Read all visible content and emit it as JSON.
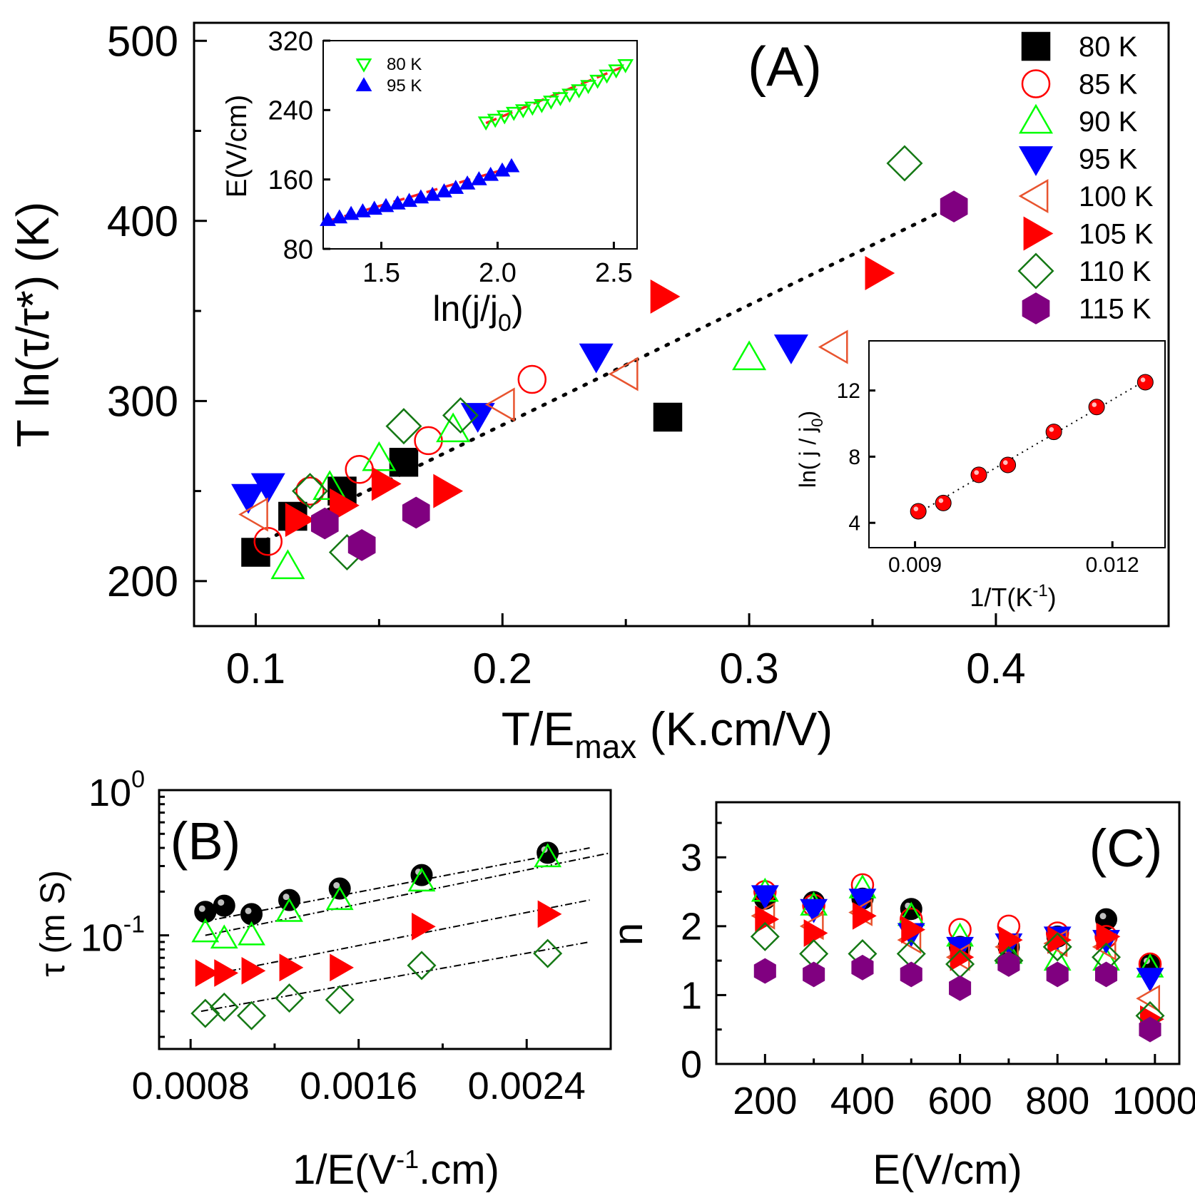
{
  "colors": {
    "black": "#000000",
    "red": "#ff0000",
    "green": "#00ff00",
    "blue": "#0000ff",
    "orange": "#e8542f",
    "darkgreen": "#147814",
    "purple": "#800080",
    "dashred": "#ff2020"
  },
  "chart_data": [
    {
      "id": "A",
      "type": "scatter",
      "panel_label": "(A)",
      "xlabel": "T/E",
      "xlabel_sub": "max",
      "xlabel_suffix": " (K.cm/V)",
      "ylabel": "T ln(τ/τ*) (K)",
      "xlim": [
        0.075,
        0.47
      ],
      "ylim": [
        175,
        510
      ],
      "xticks": [
        0.1,
        0.2,
        0.3,
        0.4
      ],
      "xtick_labels": [
        "0.1",
        "0.2",
        "0.3",
        "0.4"
      ],
      "yticks": [
        200,
        300,
        400,
        500
      ],
      "ytick_labels": [
        "200",
        "300",
        "400",
        "500"
      ],
      "series": [
        {
          "name": "80 K",
          "marker": "square",
          "color": "black",
          "fill": true,
          "x": [
            0.1,
            0.115,
            0.135,
            0.16,
            0.267
          ],
          "y": [
            216,
            236,
            250,
            266,
            291
          ]
        },
        {
          "name": "85 K",
          "marker": "circle",
          "color": "red",
          "fill": false,
          "x": [
            0.105,
            0.122,
            0.142,
            0.17,
            0.212
          ],
          "y": [
            222,
            250,
            262,
            278,
            312
          ]
        },
        {
          "name": "90 K",
          "marker": "triangle-up",
          "color": "green",
          "fill": false,
          "x": [
            0.113,
            0.13,
            0.15,
            0.18,
            0.3
          ],
          "y": [
            208,
            252,
            268,
            284,
            324
          ]
        },
        {
          "name": "95 K",
          "marker": "triangle-down",
          "color": "blue",
          "fill": true,
          "x": [
            0.097,
            0.105,
            0.19,
            0.238,
            0.317
          ],
          "y": [
            247,
            253,
            292,
            325,
            330
          ]
        },
        {
          "name": "100 K",
          "marker": "triangle-left",
          "color": "orange",
          "fill": false,
          "x": [
            0.1,
            0.2,
            0.25,
            0.335
          ],
          "y": [
            237,
            298,
            315,
            330
          ]
        },
        {
          "name": "105 K",
          "marker": "triangle-right",
          "color": "red",
          "fill": true,
          "x": [
            0.117,
            0.135,
            0.152,
            0.177,
            0.265,
            0.352
          ],
          "y": [
            234,
            242,
            254,
            250,
            358,
            371
          ]
        },
        {
          "name": "110 K",
          "marker": "diamond",
          "color": "darkgreen",
          "fill": false,
          "x": [
            0.122,
            0.137,
            0.16,
            0.183,
            0.363
          ],
          "y": [
            250,
            216,
            286,
            292,
            432
          ]
        },
        {
          "name": "115 K",
          "marker": "hexagon",
          "color": "purple",
          "fill": true,
          "x": [
            0.128,
            0.143,
            0.165,
            0.383
          ],
          "y": [
            232,
            220,
            238,
            408
          ]
        }
      ],
      "fit_line": {
        "x": [
          0.1,
          0.385
        ],
        "y": [
          220,
          410
        ]
      },
      "legend": {
        "position": "top-right",
        "labels": [
          "80 K",
          "85 K",
          "90 K",
          "95 K",
          "100 K",
          "105 K",
          "110 K",
          "115 K"
        ]
      }
    },
    {
      "id": "A-inset-top",
      "type": "scatter",
      "xlabel": "ln(j/j",
      "xlabel_sub": "0",
      "xlabel_suffix": ")",
      "ylabel": "E(V/cm)",
      "xlim": [
        1.25,
        2.6
      ],
      "ylim": [
        80,
        320
      ],
      "xticks": [
        1.5,
        2.0,
        2.5
      ],
      "xtick_labels": [
        "1.5",
        "2.0",
        "2.5"
      ],
      "yticks": [
        80,
        160,
        240,
        320
      ],
      "ytick_labels": [
        "80",
        "160",
        "240",
        "320"
      ],
      "series": [
        {
          "name": "80 K",
          "marker": "triangle-down",
          "color": "green",
          "fill": false,
          "x": [
            1.95,
            1.99,
            2.03,
            2.07,
            2.11,
            2.15,
            2.19,
            2.23,
            2.27,
            2.31,
            2.35,
            2.39,
            2.43,
            2.47,
            2.51,
            2.55
          ],
          "y": [
            226,
            229,
            233,
            237,
            240,
            243,
            246,
            250,
            254,
            258,
            263,
            268,
            274,
            280,
            286,
            292
          ]
        },
        {
          "name": "95 K",
          "marker": "triangle-up",
          "color": "blue",
          "fill": true,
          "x": [
            1.27,
            1.32,
            1.37,
            1.42,
            1.47,
            1.52,
            1.57,
            1.62,
            1.67,
            1.72,
            1.77,
            1.82,
            1.87,
            1.92,
            1.97,
            2.02,
            2.06
          ],
          "y": [
            113,
            116,
            120,
            123,
            126,
            129,
            132,
            135,
            139,
            142,
            146,
            150,
            155,
            160,
            165,
            170,
            175
          ]
        }
      ],
      "fit_lines": [
        {
          "x": [
            1.95,
            2.55
          ],
          "y": [
            225,
            291
          ]
        },
        {
          "x": [
            1.27,
            2.06
          ],
          "y": [
            112,
            174
          ]
        }
      ],
      "legend": {
        "position": "top-left",
        "labels": [
          "80 K",
          "95 K"
        ]
      }
    },
    {
      "id": "A-inset-bottom",
      "type": "scatter",
      "xlabel": "1/T(K",
      "xlabel_sup": "-1",
      "xlabel_suffix": ")",
      "ylabel": "ln( j / j",
      "ylabel_sub": "0",
      "ylabel_suffix": ")",
      "xlim": [
        0.0083,
        0.0128
      ],
      "ylim": [
        2.5,
        15
      ],
      "xticks": [
        0.009,
        0.012
      ],
      "xtick_labels": [
        "0.009",
        "0.012"
      ],
      "yticks": [
        4,
        8,
        12
      ],
      "ytick_labels": [
        "4",
        "8",
        "12"
      ],
      "series": [
        {
          "name": "ln(j/j0)",
          "marker": "ball",
          "color": "red",
          "fill": true,
          "x": [
            0.00905,
            0.00943,
            0.00997,
            0.01041,
            0.01111,
            0.01176,
            0.0125
          ],
          "y": [
            4.7,
            5.2,
            6.9,
            7.5,
            9.5,
            11.0,
            12.5
          ]
        }
      ],
      "fit_line": {
        "x": [
          0.00905,
          0.0125
        ],
        "y": [
          4.6,
          12.6
        ]
      }
    },
    {
      "id": "B",
      "type": "scatter",
      "panel_label": "(B)",
      "xlabel": "1/E(V",
      "xlabel_sup": "-1",
      "xlabel_suffix": ".cm)",
      "ylabel": "τ (m S)",
      "yscale": "log",
      "xlim": [
        0.00065,
        0.0028
      ],
      "ylim": [
        0.0165,
        1.0
      ],
      "xticks": [
        0.0008,
        0.0016,
        0.0024
      ],
      "xtick_labels": [
        "0.0008",
        "0.0016",
        "0.0024"
      ],
      "yticks": [
        1.0,
        0.1
      ],
      "ytick_base": "10",
      "ytick_exps": [
        "0",
        "-1"
      ],
      "series": [
        {
          "name": "80 K",
          "marker": "ball",
          "color": "black",
          "fill": true,
          "x": [
            0.00087,
            0.00096,
            0.00109,
            0.00127,
            0.00151,
            0.0019,
            0.0025
          ],
          "y": [
            0.145,
            0.16,
            0.14,
            0.175,
            0.21,
            0.26,
            0.37
          ]
        },
        {
          "name": "90 K",
          "marker": "triangle-up",
          "color": "green",
          "fill": false,
          "x": [
            0.00087,
            0.00096,
            0.00109,
            0.00127,
            0.00151,
            0.0019,
            0.0025
          ],
          "y": [
            0.105,
            0.095,
            0.1,
            0.145,
            0.175,
            0.235,
            0.345
          ]
        },
        {
          "name": "105 K",
          "marker": "triangle-right",
          "color": "red",
          "fill": true,
          "x": [
            0.00087,
            0.00096,
            0.00109,
            0.00127,
            0.00151,
            0.0019,
            0.0025
          ],
          "y": [
            0.055,
            0.055,
            0.057,
            0.06,
            0.06,
            0.115,
            0.14
          ]
        },
        {
          "name": "110 K",
          "marker": "diamond",
          "color": "darkgreen",
          "fill": false,
          "x": [
            0.00087,
            0.00096,
            0.00109,
            0.00127,
            0.00151,
            0.0019,
            0.0025
          ],
          "y": [
            0.029,
            0.032,
            0.028,
            0.037,
            0.036,
            0.062,
            0.075
          ]
        }
      ],
      "fit_lines": [
        {
          "x": [
            0.00087,
            0.0027
          ],
          "y": [
            0.125,
            0.4
          ]
        },
        {
          "x": [
            0.00087,
            0.0028
          ],
          "y": [
            0.1,
            0.37
          ]
        },
        {
          "x": [
            0.00085,
            0.0027
          ],
          "y": [
            0.052,
            0.175
          ]
        },
        {
          "x": [
            0.00085,
            0.0027
          ],
          "y": [
            0.03,
            0.09
          ]
        }
      ]
    },
    {
      "id": "C",
      "type": "scatter",
      "panel_label": "(C)",
      "xlabel": "E(V/cm)",
      "ylabel": "n",
      "xlim": [
        100,
        1050
      ],
      "ylim": [
        0,
        3.8
      ],
      "xticks": [
        200,
        400,
        600,
        800,
        1000
      ],
      "xtick_labels": [
        "200",
        "400",
        "600",
        "800",
        "1000"
      ],
      "yticks": [
        0,
        1,
        2,
        3
      ],
      "ytick_labels": [
        "0",
        "1",
        "2",
        "3"
      ],
      "series": [
        {
          "name": "80 K",
          "marker": "ball",
          "color": "black",
          "fill": true,
          "x": [
            200,
            300,
            400,
            500,
            600,
            700,
            800,
            900,
            990
          ],
          "y": [
            2.4,
            2.35,
            2.4,
            2.25,
            1.7,
            1.7,
            1.85,
            2.1,
            1.45
          ]
        },
        {
          "name": "85 K",
          "marker": "circle",
          "color": "red",
          "fill": false,
          "x": [
            200,
            300,
            400,
            500,
            600,
            700,
            800,
            900,
            990
          ],
          "y": [
            2.5,
            2.3,
            2.6,
            2.1,
            1.95,
            2.0,
            1.9,
            1.85,
            1.45
          ]
        },
        {
          "name": "90 K",
          "marker": "triangle-up",
          "color": "green",
          "fill": false,
          "x": [
            200,
            300,
            400,
            500,
            600,
            700,
            800,
            900,
            990
          ],
          "y": [
            2.5,
            2.3,
            2.55,
            2.15,
            1.85,
            1.6,
            1.5,
            1.5,
            1.4
          ]
        },
        {
          "name": "95 K",
          "marker": "triangle-down",
          "color": "blue",
          "fill": true,
          "x": [
            200,
            300,
            400,
            500,
            600,
            700,
            800,
            900,
            990
          ],
          "y": [
            2.45,
            2.25,
            2.4,
            1.9,
            1.7,
            1.75,
            1.85,
            1.8,
            1.25
          ]
        },
        {
          "name": "100 K",
          "marker": "triangle-left",
          "color": "orange",
          "fill": false,
          "x": [
            200,
            300,
            400,
            500,
            600,
            700,
            800,
            900,
            990
          ],
          "y": [
            2.15,
            2.0,
            2.2,
            1.8,
            1.55,
            1.7,
            1.75,
            1.7,
            0.95
          ]
        },
        {
          "name": "105 K",
          "marker": "triangle-right",
          "color": "red",
          "fill": true,
          "x": [
            200,
            300,
            400,
            500,
            600,
            700,
            800,
            900,
            990
          ],
          "y": [
            2.1,
            1.9,
            2.15,
            1.95,
            1.55,
            1.8,
            1.8,
            1.85,
            0.65
          ]
        },
        {
          "name": "110 K",
          "marker": "diamond",
          "color": "darkgreen",
          "fill": false,
          "x": [
            200,
            300,
            400,
            500,
            600,
            700,
            800,
            900,
            990
          ],
          "y": [
            1.85,
            1.6,
            1.6,
            1.6,
            1.45,
            1.5,
            1.7,
            1.55,
            0.7
          ]
        },
        {
          "name": "115 K",
          "marker": "hexagon",
          "color": "purple",
          "fill": true,
          "x": [
            200,
            300,
            400,
            500,
            600,
            700,
            800,
            900,
            990
          ],
          "y": [
            1.35,
            1.3,
            1.4,
            1.3,
            1.1,
            1.45,
            1.3,
            1.3,
            0.5
          ]
        }
      ]
    }
  ]
}
